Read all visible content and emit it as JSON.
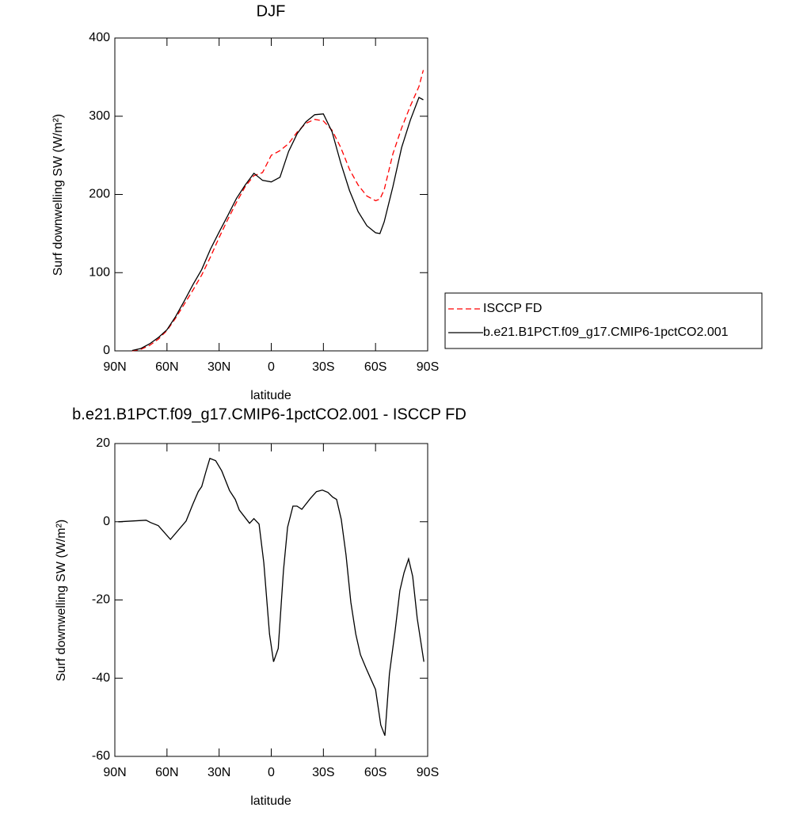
{
  "chart_data": [
    {
      "type": "line",
      "title": "DJF",
      "x_label": "latitude",
      "y_label": "Surf downwelling SW (W/m²)",
      "x": [
        80,
        75,
        70,
        65,
        60,
        55,
        50,
        45,
        40,
        35,
        30,
        25,
        20,
        15,
        10,
        5,
        0,
        -5,
        -10,
        -15,
        -20,
        -25,
        -30,
        -35,
        -40,
        -45,
        -50,
        -55,
        -60,
        -62.5,
        -65,
        -70,
        -75,
        -80,
        -85,
        -87.5
      ],
      "series": [
        {
          "name": "ISCCP FD",
          "color": "#ff0000",
          "dashed": true,
          "values": [
            0,
            2,
            7,
            15,
            26,
            42,
            60,
            78,
            97,
            120,
            145,
            168,
            190,
            210,
            224,
            228,
            250,
            256,
            265,
            280,
            291,
            296,
            294,
            282,
            260,
            232,
            212,
            198,
            192,
            194,
            206,
            252,
            285,
            313,
            338,
            359
          ]
        },
        {
          "name": "b.e21.B1PCT.f09_g17.CMIP6-1pctCO2.001",
          "color": "#000000",
          "dashed": false,
          "values": [
            0.5,
            3,
            9,
            17,
            27,
            44,
            64,
            85,
            104,
            130,
            152,
            173,
            195,
            212,
            227,
            218,
            216,
            222,
            255,
            278,
            293,
            302,
            303,
            280,
            240,
            205,
            178,
            160,
            151,
            150,
            165,
            210,
            260,
            295,
            324,
            321
          ]
        }
      ],
      "xlim": [
        90,
        -90
      ],
      "xticks": [
        {
          "value": 90,
          "label": "90N"
        },
        {
          "value": 60,
          "label": "60N"
        },
        {
          "value": 30,
          "label": "30N"
        },
        0,
        {
          "value": -30,
          "label": "30S"
        },
        {
          "value": -60,
          "label": "60S"
        },
        {
          "value": -90,
          "label": "90S"
        }
      ],
      "ylim": [
        0,
        400
      ],
      "yticks": [
        0,
        100,
        200,
        300,
        400
      ],
      "legend": "right"
    },
    {
      "type": "line",
      "title": "b.e21.B1PCT.f09_g17.CMIP6-1pctCO2.001 - ISCCP FD",
      "x_label": "latitude",
      "y_label": "Surf downwelling SW (W/m²)",
      "x": [
        88,
        72,
        69.5,
        65,
        58,
        49,
        45.3,
        42,
        40,
        37.6,
        35.3,
        32,
        28.5,
        24,
        20.7,
        18.4,
        12.5,
        10,
        7,
        4.3,
        1,
        -1.3,
        -4,
        -7,
        -9.4,
        -12.5,
        -14.8,
        -17.6,
        -22.6,
        -26,
        -29.4,
        -32.6,
        -35.3,
        -37.6,
        -40.3,
        -43,
        -45.8,
        -48.6,
        -51.3,
        -54.5,
        -57,
        -60,
        -63,
        -65.4,
        -68,
        -71.3,
        -74,
        -76.4,
        -79,
        -81.4,
        -84,
        -87.8
      ],
      "series": [
        {
          "color": "#000000",
          "dashed": false,
          "values": [
            0,
            0.4,
            -0.2,
            -1,
            -4.5,
            0.2,
            4.3,
            7.7,
            9,
            12.8,
            16.2,
            15.6,
            13,
            8,
            5.7,
            3,
            -0.4,
            0.8,
            -0.6,
            -10.5,
            -28.7,
            -35.8,
            -32.4,
            -12.5,
            -1.4,
            4,
            4,
            3.2,
            6,
            7.7,
            8.1,
            7.5,
            6.3,
            5.7,
            0.6,
            -8.5,
            -20.6,
            -28.7,
            -34,
            -37.4,
            -39.9,
            -42.9,
            -52,
            -54.7,
            -38.9,
            -27.7,
            -17.6,
            -13,
            -9.5,
            -14,
            -24.7,
            -35.8
          ]
        }
      ],
      "xlim": [
        90,
        -90
      ],
      "xticks": [
        {
          "value": 90,
          "label": "90N"
        },
        {
          "value": 60,
          "label": "60N"
        },
        {
          "value": 30,
          "label": "30N"
        },
        0,
        {
          "value": -30,
          "label": "30S"
        },
        {
          "value": -60,
          "label": "60S"
        },
        {
          "value": -90,
          "label": "90S"
        }
      ],
      "ylim": [
        -60,
        20
      ],
      "yticks": [
        -60,
        -40,
        -20,
        0,
        20
      ]
    }
  ]
}
